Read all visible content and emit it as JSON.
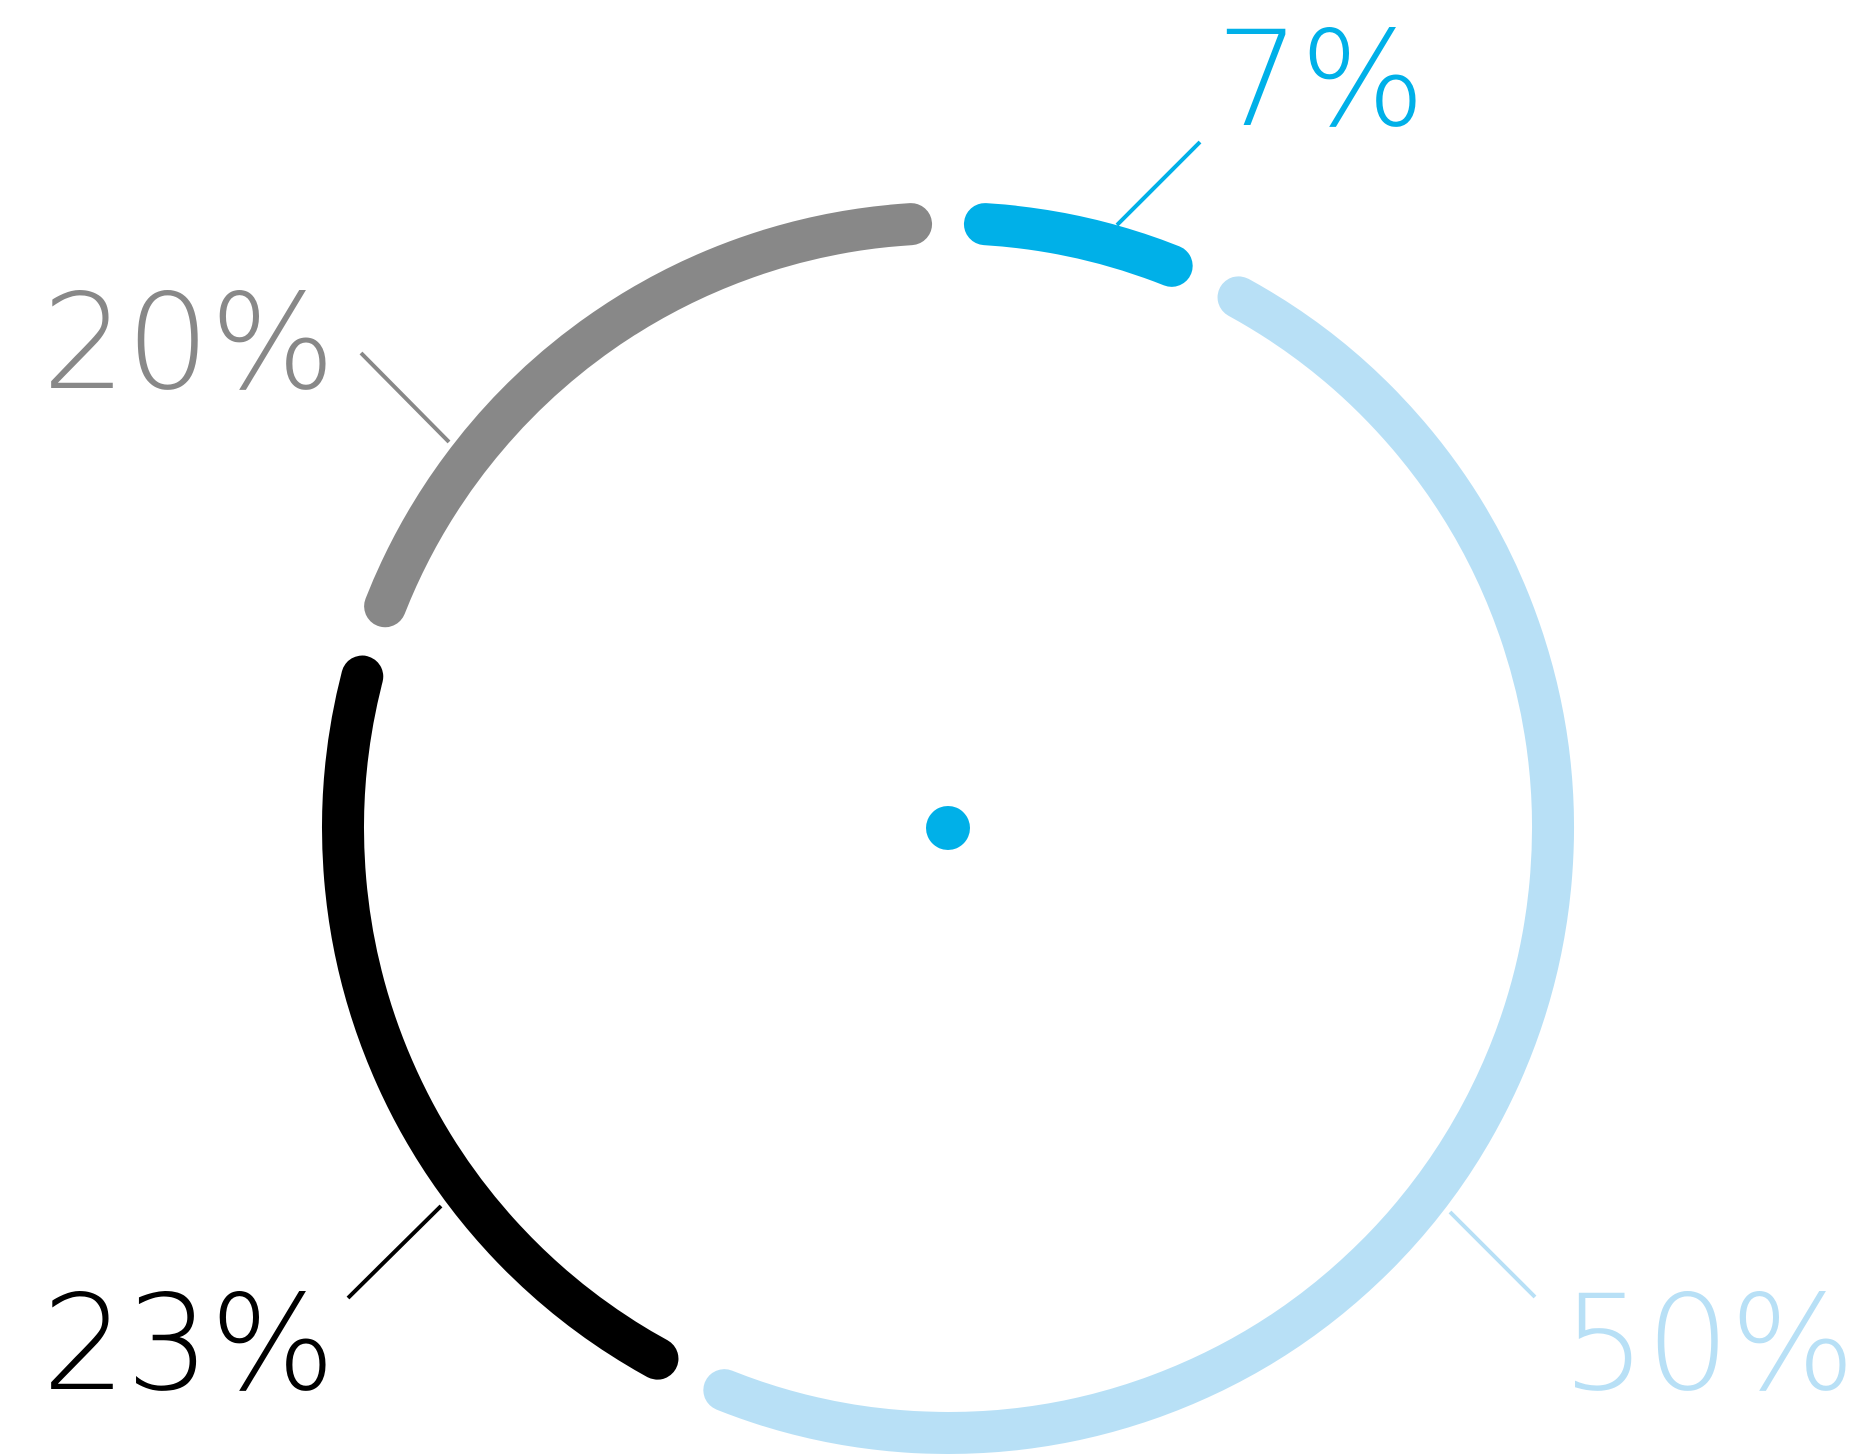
{
  "chart_data": {
    "type": "pie",
    "variant": "segmented-ring",
    "title": "",
    "legend": "none",
    "slices": [
      {
        "label": "7%",
        "value": 7,
        "color": "#00b0e8"
      },
      {
        "label": "50%",
        "value": 50,
        "color": "#b8e0f6"
      },
      {
        "label": "23%",
        "value": 23,
        "color": "#000000"
      },
      {
        "label": "20%",
        "value": 20,
        "color": "#888888"
      }
    ],
    "center_dot_color": "#00b0e8"
  }
}
